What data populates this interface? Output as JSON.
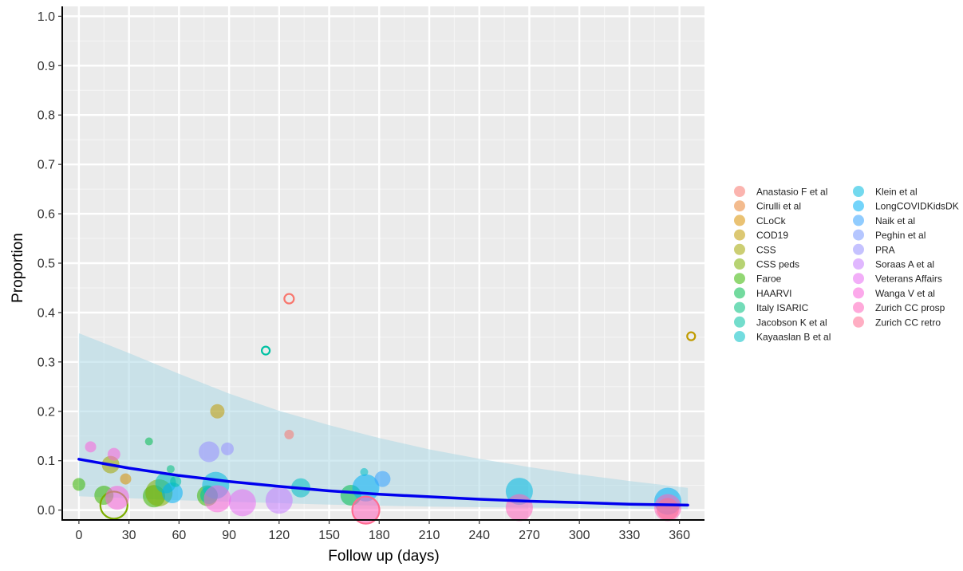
{
  "chart_data": {
    "type": "scatter",
    "title": "",
    "xlabel": "Follow up (days)",
    "ylabel": "Proportion",
    "xlim": [
      -10,
      375
    ],
    "ylim": [
      -0.02,
      1.02
    ],
    "x_ticks": [
      0,
      30,
      60,
      90,
      120,
      150,
      180,
      210,
      240,
      270,
      300,
      330,
      360
    ],
    "y_ticks": [
      0.0,
      0.1,
      0.2,
      0.3,
      0.4,
      0.5,
      0.6,
      0.7,
      0.8,
      0.9,
      1.0
    ],
    "x_tick_labels": [
      "0",
      "30",
      "60",
      "90",
      "120",
      "150",
      "180",
      "210",
      "240",
      "270",
      "300",
      "330",
      "360"
    ],
    "y_tick_labels": [
      "0.0",
      "0.1",
      "0.2",
      "0.3",
      "0.4",
      "0.5",
      "0.6",
      "0.7",
      "0.8",
      "0.9",
      "1.0"
    ],
    "grid": true,
    "legend_position": "right",
    "background": "#ebebeb",
    "legend": [
      {
        "name": "Anastasio F et al",
        "color": "#f8766d"
      },
      {
        "name": "Cirulli et al",
        "color": "#ea8331"
      },
      {
        "name": "CLoCk",
        "color": "#d89000"
      },
      {
        "name": "COD19",
        "color": "#c09b00"
      },
      {
        "name": "CSS",
        "color": "#a3a500"
      },
      {
        "name": "CSS peds",
        "color": "#7cae00"
      },
      {
        "name": "Faroe",
        "color": "#39b600"
      },
      {
        "name": "HAARVI",
        "color": "#00bb4e"
      },
      {
        "name": "Italy ISARIC",
        "color": "#00bf7d"
      },
      {
        "name": "Jacobson K et al",
        "color": "#00c1a3"
      },
      {
        "name": "Kayaaslan B et al",
        "color": "#00bfc4"
      },
      {
        "name": "Klein et al",
        "color": "#00bae0"
      },
      {
        "name": "LongCOVIDKidsDK",
        "color": "#00b0f6"
      },
      {
        "name": "Naik et al",
        "color": "#35a2ff"
      },
      {
        "name": "Peghin et al",
        "color": "#7997ff"
      },
      {
        "name": "PRA",
        "color": "#9590ff"
      },
      {
        "name": "Soraas A et al",
        "color": "#c77cff"
      },
      {
        "name": "Veterans Affairs",
        "color": "#e76bf3"
      },
      {
        "name": "Wanga V et al",
        "color": "#fa62db"
      },
      {
        "name": "Zurich CC prosp",
        "color": "#ff62bc"
      },
      {
        "name": "Zurich CC retro",
        "color": "#ff6c91"
      }
    ],
    "points": [
      {
        "x": 0,
        "y": 0.052,
        "r": 8,
        "color": "#39b600",
        "hollow": false
      },
      {
        "x": 7,
        "y": 0.128,
        "r": 7,
        "color": "#fa62db",
        "hollow": false
      },
      {
        "x": 15,
        "y": 0.03,
        "r": 12,
        "color": "#39b600",
        "hollow": false
      },
      {
        "x": 19,
        "y": 0.092,
        "r": 11,
        "color": "#a3a500",
        "hollow": false
      },
      {
        "x": 21,
        "y": 0.113,
        "r": 8,
        "color": "#fa62db",
        "hollow": false
      },
      {
        "x": 21,
        "y": 0.01,
        "r": 17,
        "color": "#7cae00",
        "hollow": true
      },
      {
        "x": 23,
        "y": 0.025,
        "r": 15,
        "color": "#fa62db",
        "hollow": false
      },
      {
        "x": 28,
        "y": 0.063,
        "r": 7,
        "color": "#d89000",
        "hollow": false
      },
      {
        "x": 42,
        "y": 0.139,
        "r": 5,
        "color": "#00bb4e",
        "hollow": false
      },
      {
        "x": 45,
        "y": 0.028,
        "r": 14,
        "color": "#39b600",
        "hollow": false
      },
      {
        "x": 48,
        "y": 0.035,
        "r": 17,
        "color": "#7cae00",
        "hollow": false
      },
      {
        "x": 52,
        "y": 0.055,
        "r": 13,
        "color": "#00bfc4",
        "hollow": false
      },
      {
        "x": 55,
        "y": 0.083,
        "r": 5,
        "color": "#00bf7d",
        "hollow": false
      },
      {
        "x": 56,
        "y": 0.035,
        "r": 13,
        "color": "#00b0f6",
        "hollow": false
      },
      {
        "x": 58,
        "y": 0.058,
        "r": 7,
        "color": "#00c1a3",
        "hollow": false
      },
      {
        "x": 77,
        "y": 0.029,
        "r": 13,
        "color": "#39b600",
        "hollow": false
      },
      {
        "x": 78,
        "y": 0.118,
        "r": 13,
        "color": "#9590ff",
        "hollow": false
      },
      {
        "x": 78,
        "y": 0.03,
        "r": 11,
        "color": "#00c1a3",
        "hollow": false
      },
      {
        "x": 83,
        "y": 0.2,
        "r": 9,
        "color": "#c09b00",
        "hollow": false
      },
      {
        "x": 82,
        "y": 0.05,
        "r": 17,
        "color": "#00bae0",
        "hollow": false
      },
      {
        "x": 83,
        "y": 0.023,
        "r": 17,
        "color": "#fa62db",
        "hollow": false
      },
      {
        "x": 89,
        "y": 0.124,
        "r": 8,
        "color": "#9590ff",
        "hollow": false
      },
      {
        "x": 98,
        "y": 0.015,
        "r": 17,
        "color": "#e76bf3",
        "hollow": false
      },
      {
        "x": 112,
        "y": 0.323,
        "r": 5,
        "color": "#00c1a3",
        "hollow": true
      },
      {
        "x": 120,
        "y": 0.02,
        "r": 17,
        "color": "#c77cff",
        "hollow": false
      },
      {
        "x": 126,
        "y": 0.428,
        "r": 6,
        "color": "#f8766d",
        "hollow": true
      },
      {
        "x": 126,
        "y": 0.153,
        "r": 6,
        "color": "#f8766d",
        "hollow": false
      },
      {
        "x": 133,
        "y": 0.045,
        "r": 12,
        "color": "#00bfc4",
        "hollow": false
      },
      {
        "x": 163,
        "y": 0.03,
        "r": 13,
        "color": "#00bb4e",
        "hollow": false
      },
      {
        "x": 171,
        "y": 0.077,
        "r": 5,
        "color": "#00bfc4",
        "hollow": false
      },
      {
        "x": 172,
        "y": 0.045,
        "r": 17,
        "color": "#00b0f6",
        "hollow": false
      },
      {
        "x": 172,
        "y": 0.0,
        "r": 17,
        "color": "#ff62bc",
        "hollow": false
      },
      {
        "x": 172,
        "y": 0.0,
        "r": 17,
        "color": "#ff6c91",
        "hollow": true
      },
      {
        "x": 182,
        "y": 0.063,
        "r": 10,
        "color": "#35a2ff",
        "hollow": false
      },
      {
        "x": 264,
        "y": 0.038,
        "r": 17,
        "color": "#00bae0",
        "hollow": false
      },
      {
        "x": 264,
        "y": 0.005,
        "r": 17,
        "color": "#ff62bc",
        "hollow": false
      },
      {
        "x": 353,
        "y": 0.018,
        "r": 17,
        "color": "#00b0f6",
        "hollow": false
      },
      {
        "x": 353,
        "y": 0.005,
        "r": 17,
        "color": "#ff62bc",
        "hollow": false
      },
      {
        "x": 353,
        "y": 0.002,
        "r": 14,
        "color": "#ff6c91",
        "hollow": false
      },
      {
        "x": 367,
        "y": 0.352,
        "r": 5,
        "color": "#c09b00",
        "hollow": true
      }
    ],
    "fit_line": {
      "color": "#0000ee",
      "x": [
        0,
        30,
        60,
        90,
        120,
        150,
        180,
        210,
        240,
        270,
        300,
        330,
        365
      ],
      "y": [
        0.103,
        0.085,
        0.07,
        0.058,
        0.048,
        0.039,
        0.032,
        0.027,
        0.022,
        0.018,
        0.015,
        0.012,
        0.01
      ]
    },
    "confidence_band": {
      "color": "#add8e6",
      "x": [
        0,
        30,
        60,
        90,
        120,
        150,
        180,
        210,
        240,
        270,
        300,
        330,
        365
      ],
      "upper": [
        0.358,
        0.318,
        0.276,
        0.236,
        0.201,
        0.172,
        0.146,
        0.123,
        0.104,
        0.087,
        0.072,
        0.059,
        0.045
      ],
      "lower": [
        0.028,
        0.024,
        0.02,
        0.017,
        0.014,
        0.011,
        0.009,
        0.007,
        0.006,
        0.005,
        0.004,
        0.003,
        0.002
      ]
    }
  }
}
